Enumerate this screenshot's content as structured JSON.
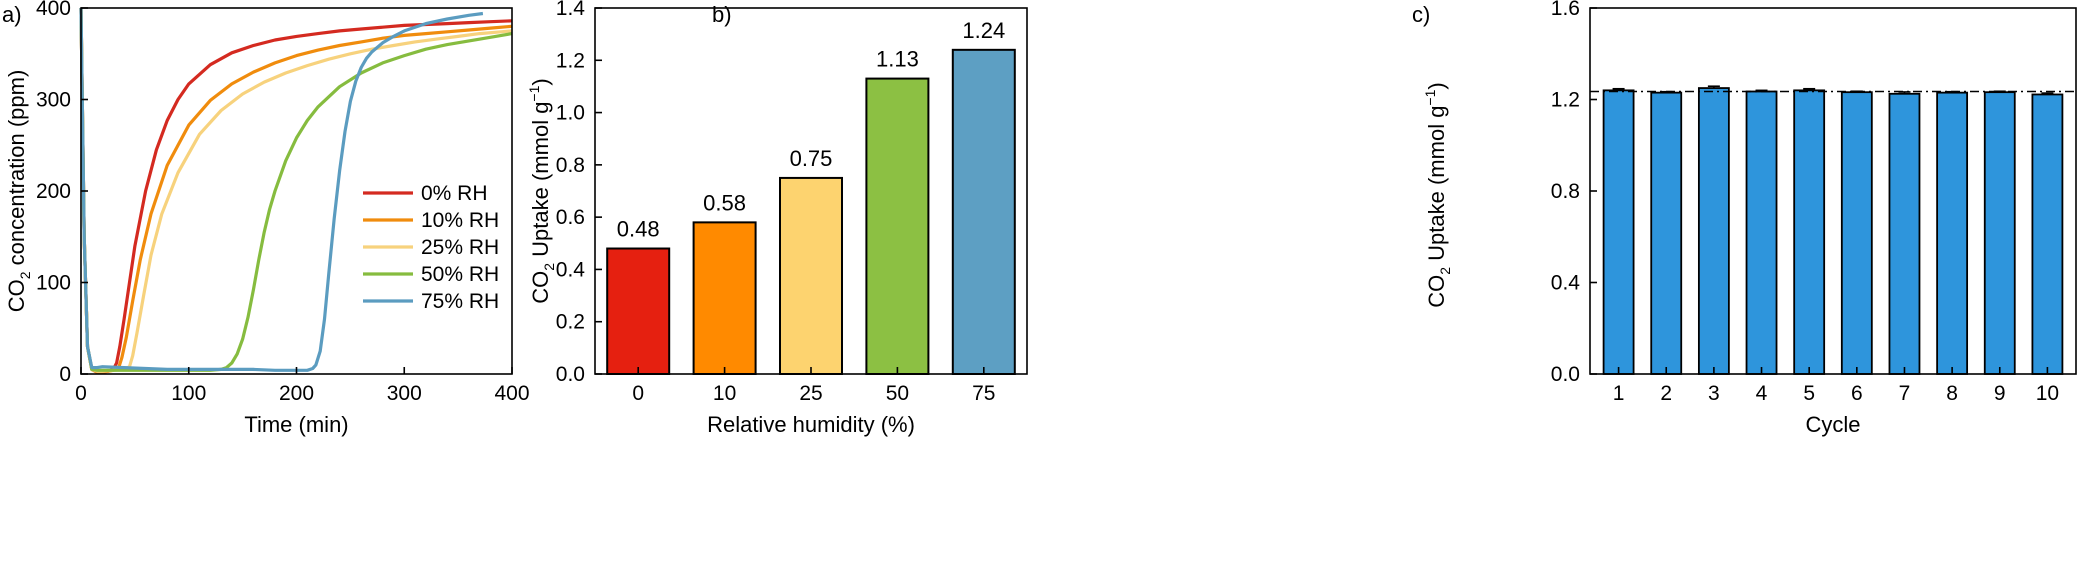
{
  "panel_labels": [
    "a)",
    "b)",
    "c)"
  ],
  "colors": {
    "rh0": "#d42a20",
    "rh10": "#f08c0d",
    "rh25": "#f7d27d",
    "rh50": "#86bc3f",
    "rh75": "#5b9cc0",
    "bar0": "#e52010",
    "bar10": "#ff8a00",
    "bar25": "#fdd36f",
    "bar50": "#8cc043",
    "bar75": "#5d9fc3",
    "cycle_bar": "#2e95dc"
  },
  "chart_data": [
    {
      "id": "a",
      "type": "line",
      "xlabel": "Time (min)",
      "ylabel_parts": [
        "CO",
        "2",
        " concentration (ppm)"
      ],
      "xlim": [
        0,
        400
      ],
      "ylim": [
        0,
        400
      ],
      "xticks": [
        0,
        100,
        200,
        300,
        400
      ],
      "xtick_labels": [
        "0",
        "100",
        "200",
        "300",
        "400"
      ],
      "yticks": [
        0,
        100,
        200,
        300,
        400
      ],
      "ytick_labels": [
        "0",
        "100",
        "200",
        "300",
        "400"
      ],
      "legend_position": "center-right",
      "series": [
        {
          "name": "0% RH",
          "color_key": "rh0",
          "x": [
            0,
            3,
            6,
            10,
            15,
            20,
            25,
            30,
            33,
            36,
            40,
            45,
            50,
            60,
            70,
            80,
            90,
            100,
            120,
            140,
            160,
            180,
            200,
            220,
            240,
            260,
            280,
            300,
            320,
            340,
            360,
            380,
            400
          ],
          "y": [
            420,
            150,
            30,
            5,
            2,
            2,
            3,
            5,
            12,
            30,
            60,
            100,
            140,
            200,
            245,
            277,
            300,
            317,
            338,
            351,
            359,
            365,
            369,
            372,
            375,
            377,
            379,
            381,
            382,
            383,
            384,
            385,
            386
          ]
        },
        {
          "name": "10% RH",
          "color_key": "rh10",
          "x": [
            0,
            3,
            6,
            10,
            15,
            20,
            25,
            30,
            35,
            38,
            42,
            48,
            55,
            65,
            80,
            100,
            120,
            140,
            160,
            180,
            200,
            220,
            240,
            260,
            280,
            300,
            320,
            340,
            360,
            380,
            400
          ],
          "y": [
            420,
            150,
            30,
            5,
            2,
            2,
            3,
            4,
            7,
            18,
            40,
            80,
            125,
            175,
            228,
            272,
            299,
            317,
            330,
            340,
            348,
            354,
            359,
            363,
            367,
            370,
            372,
            374,
            376,
            378,
            380
          ]
        },
        {
          "name": "25% RH",
          "color_key": "rh25",
          "x": [
            0,
            3,
            6,
            10,
            15,
            20,
            30,
            40,
            45,
            48,
            52,
            58,
            65,
            75,
            90,
            110,
            130,
            150,
            170,
            190,
            210,
            230,
            250,
            270,
            290,
            310,
            330,
            350,
            370,
            390,
            400
          ],
          "y": [
            420,
            150,
            30,
            5,
            3,
            3,
            4,
            5,
            8,
            20,
            45,
            85,
            130,
            175,
            220,
            262,
            288,
            306,
            319,
            329,
            337,
            344,
            350,
            355,
            359,
            363,
            366,
            369,
            372,
            374,
            375
          ]
        },
        {
          "name": "50% RH",
          "color_key": "rh50",
          "x": [
            0,
            3,
            6,
            10,
            15,
            20,
            40,
            60,
            80,
            100,
            120,
            130,
            135,
            140,
            145,
            150,
            155,
            160,
            165,
            170,
            175,
            180,
            190,
            200,
            210,
            220,
            240,
            260,
            280,
            300,
            320,
            340,
            360,
            380,
            400
          ],
          "y": [
            420,
            150,
            30,
            5,
            4,
            4,
            4,
            4,
            4,
            4,
            4,
            5,
            7,
            12,
            22,
            38,
            62,
            92,
            125,
            155,
            180,
            200,
            233,
            258,
            277,
            292,
            314,
            329,
            340,
            348,
            355,
            360,
            364,
            368,
            372
          ]
        },
        {
          "name": "75% RH",
          "color_key": "rh75",
          "x": [
            0,
            3,
            6,
            10,
            15,
            20,
            40,
            60,
            80,
            100,
            120,
            140,
            160,
            180,
            200,
            205,
            210,
            215,
            218,
            222,
            226,
            230,
            235,
            240,
            245,
            250,
            255,
            260,
            265,
            270,
            280,
            290,
            300,
            320,
            340,
            360,
            373
          ],
          "y": [
            420,
            150,
            30,
            7,
            7,
            8,
            7,
            6,
            5,
            5,
            5,
            5,
            5,
            4,
            4,
            4,
            4,
            6,
            10,
            25,
            60,
            110,
            170,
            222,
            265,
            298,
            320,
            335,
            345,
            352,
            362,
            369,
            375,
            383,
            388,
            392,
            394
          ]
        }
      ]
    },
    {
      "id": "b",
      "type": "bar",
      "xlabel": "Relative humidity (%)",
      "ylabel_parts": [
        "CO",
        "2",
        " Uptake (mmol g",
        "−1",
        ")"
      ],
      "ylim": [
        0,
        1.4
      ],
      "yticks": [
        0,
        0.2,
        0.4,
        0.6,
        0.8,
        1.0,
        1.2,
        1.4
      ],
      "ytick_labels": [
        "0.0",
        "0.2",
        "0.4",
        "0.6",
        "0.8",
        "1.0",
        "1.2",
        "1.4"
      ],
      "categories": [
        "0",
        "10",
        "25",
        "50",
        "75"
      ],
      "values": [
        0.48,
        0.58,
        0.75,
        1.13,
        1.24
      ],
      "value_labels": [
        "0.48",
        "0.58",
        "0.75",
        "1.13",
        "1.24"
      ],
      "bar_color_keys": [
        "bar0",
        "bar10",
        "bar25",
        "bar50",
        "bar75"
      ]
    },
    {
      "id": "c",
      "type": "bar",
      "xlabel": "Cycle",
      "ylabel_parts": [
        "CO",
        "2",
        " Uptake (mmol g",
        "−1",
        ")"
      ],
      "ylim": [
        0,
        1.6
      ],
      "yticks": [
        0,
        0.4,
        0.8,
        1.2,
        1.6
      ],
      "ytick_labels": [
        "0.0",
        "0.4",
        "0.8",
        "1.2",
        "1.6"
      ],
      "categories": [
        "1",
        "2",
        "3",
        "4",
        "5",
        "6",
        "7",
        "8",
        "9",
        "10"
      ],
      "values": [
        1.24,
        1.23,
        1.25,
        1.235,
        1.24,
        1.232,
        1.225,
        1.23,
        1.232,
        1.222
      ],
      "errors": [
        0.007,
        0.004,
        0.008,
        0.005,
        0.007,
        0.004,
        0.008,
        0.004,
        0.004,
        0.006
      ],
      "reference_line": 1.235,
      "bar_color_key": "cycle_bar"
    }
  ]
}
